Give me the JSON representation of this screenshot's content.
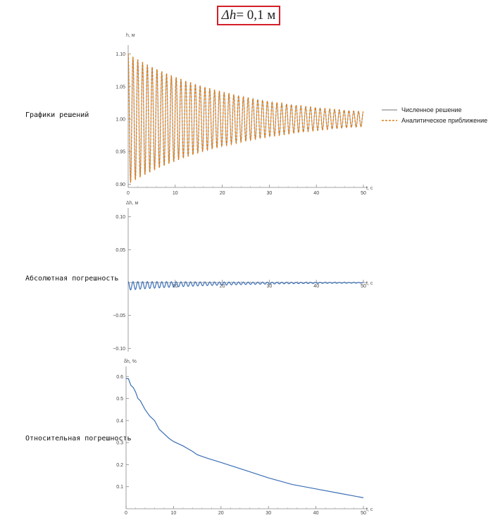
{
  "header": {
    "title_prefix": "Δh",
    "title_eq": " = 0,1 м"
  },
  "rows": [
    {
      "label": "Графики решений"
    },
    {
      "label": "Абсолютная погрешность"
    },
    {
      "label": "Относительная погрешность"
    }
  ],
  "legend": {
    "item1": "Численное решение",
    "item2": "Аналитическое приближение"
  },
  "colors": {
    "numeric": "#8f8f8f",
    "analytic": "#e17b13",
    "blue": "#3b6fb6",
    "header_border": "#d3202a"
  },
  "chart_data": [
    {
      "type": "line",
      "xlabel": "t, c",
      "ylabel": "h, м",
      "xlim": [
        0,
        50
      ],
      "ylim": [
        0.895,
        1.105
      ],
      "xticks": [
        "0",
        "10",
        "20",
        "30",
        "40",
        "50"
      ],
      "yticks": [
        "0.90",
        "0.95",
        "1.00",
        "1.05",
        "1.10"
      ],
      "ytick_values": [
        0.9,
        0.95,
        1.0,
        1.05,
        1.1
      ],
      "series": [
        {
          "name": "Численное решение",
          "style": "solid",
          "model": {
            "mean": 1.0,
            "amplitude0": 0.1,
            "decay_rate": 0.0434,
            "period": 1.02
          }
        },
        {
          "name": "Аналитическое приближение",
          "style": "dashed",
          "model": {
            "mean": 1.0,
            "amplitude0": 0.1,
            "decay_rate": 0.0434,
            "period": 1.02
          }
        }
      ]
    },
    {
      "type": "line",
      "xlabel": "t, c",
      "ylabel": "Δh, м",
      "xlim": [
        0,
        50
      ],
      "ylim": [
        -0.105,
        0.105
      ],
      "xticks": [
        "10",
        "20",
        "30",
        "40",
        "50"
      ],
      "yticks": [
        "0.10",
        "0.05",
        "−0.05",
        "−0.10"
      ],
      "ytick_values": [
        0.1,
        0.05,
        -0.05,
        -0.1
      ],
      "series": [
        {
          "style": "solid",
          "model": {
            "mean_start": -0.005,
            "mean_decay": 0.06,
            "amplitude0": 0.0065,
            "decay_rate": 0.05,
            "period": 1.02
          }
        }
      ]
    },
    {
      "type": "line",
      "xlabel": "t, c",
      "ylabel": "δh, %",
      "xlim": [
        0,
        50
      ],
      "ylim": [
        0,
        0.62
      ],
      "xticks": [
        "0",
        "10",
        "20",
        "30",
        "40",
        "50"
      ],
      "yticks": [
        "0.1",
        "0.2",
        "0.3",
        "0.4",
        "0.5",
        "0.6"
      ],
      "ytick_values": [
        0.1,
        0.2,
        0.3,
        0.4,
        0.5,
        0.6
      ],
      "series": [
        {
          "style": "solid",
          "points": [
            [
              0,
              0.59
            ],
            [
              0.5,
              0.59
            ],
            [
              1,
              0.56
            ],
            [
              1.5,
              0.55
            ],
            [
              2,
              0.53
            ],
            [
              2.5,
              0.5
            ],
            [
              3,
              0.49
            ],
            [
              4,
              0.45
            ],
            [
              5,
              0.42
            ],
            [
              6,
              0.4
            ],
            [
              7,
              0.36
            ],
            [
              8,
              0.34
            ],
            [
              9,
              0.32
            ],
            [
              10,
              0.305
            ],
            [
              12,
              0.285
            ],
            [
              14,
              0.26
            ],
            [
              15,
              0.245
            ],
            [
              17,
              0.23
            ],
            [
              20,
              0.21
            ],
            [
              25,
              0.175
            ],
            [
              30,
              0.14
            ],
            [
              35,
              0.11
            ],
            [
              40,
              0.09
            ],
            [
              45,
              0.07
            ],
            [
              50,
              0.05
            ]
          ]
        }
      ]
    }
  ]
}
